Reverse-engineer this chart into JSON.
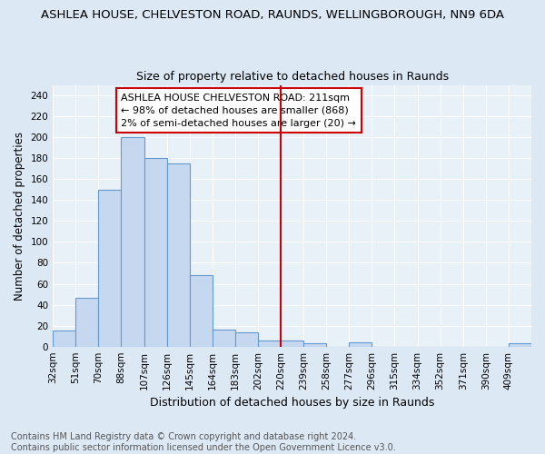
{
  "title": "ASHLEA HOUSE, CHELVESTON ROAD, RAUNDS, WELLINGBOROUGH, NN9 6DA",
  "subtitle": "Size of property relative to detached houses in Raunds",
  "xlabel": "Distribution of detached houses by size in Raunds",
  "ylabel": "Number of detached properties",
  "categories": [
    "32sqm",
    "51sqm",
    "70sqm",
    "88sqm",
    "107sqm",
    "126sqm",
    "145sqm",
    "164sqm",
    "183sqm",
    "202sqm",
    "220sqm",
    "239sqm",
    "258sqm",
    "277sqm",
    "296sqm",
    "315sqm",
    "334sqm",
    "352sqm",
    "371sqm",
    "390sqm",
    "409sqm"
  ],
  "values": [
    15,
    47,
    150,
    200,
    180,
    175,
    68,
    16,
    14,
    6,
    6,
    3,
    0,
    4,
    0,
    0,
    0,
    0,
    0,
    0,
    3
  ],
  "bar_fill_color": "#c5d8f0",
  "bar_edge_color": "#6699cc",
  "vline_color": "#cc0000",
  "vline_x": 10,
  "annotation_text": "ASHLEA HOUSE CHELVESTON ROAD: 211sqm\n← 98% of detached houses are smaller (868)\n2% of semi-detached houses are larger (20) →",
  "annotation_box_color": "white",
  "annotation_box_edge": "#cc0000",
  "ylim": [
    0,
    250
  ],
  "yticks": [
    0,
    20,
    40,
    60,
    80,
    100,
    120,
    140,
    160,
    180,
    200,
    220,
    240
  ],
  "bg_color": "#dde8f5",
  "plot_bg_color": "#e8f0f8",
  "footer_line1": "Contains HM Land Registry data © Crown copyright and database right 2024.",
  "footer_line2": "Contains public sector information licensed under the Open Government Licence v3.0.",
  "title_fontsize": 9.5,
  "subtitle_fontsize": 9,
  "xlabel_fontsize": 9,
  "ylabel_fontsize": 8.5,
  "tick_fontsize": 7.5,
  "annotation_fontsize": 8,
  "footer_fontsize": 7
}
